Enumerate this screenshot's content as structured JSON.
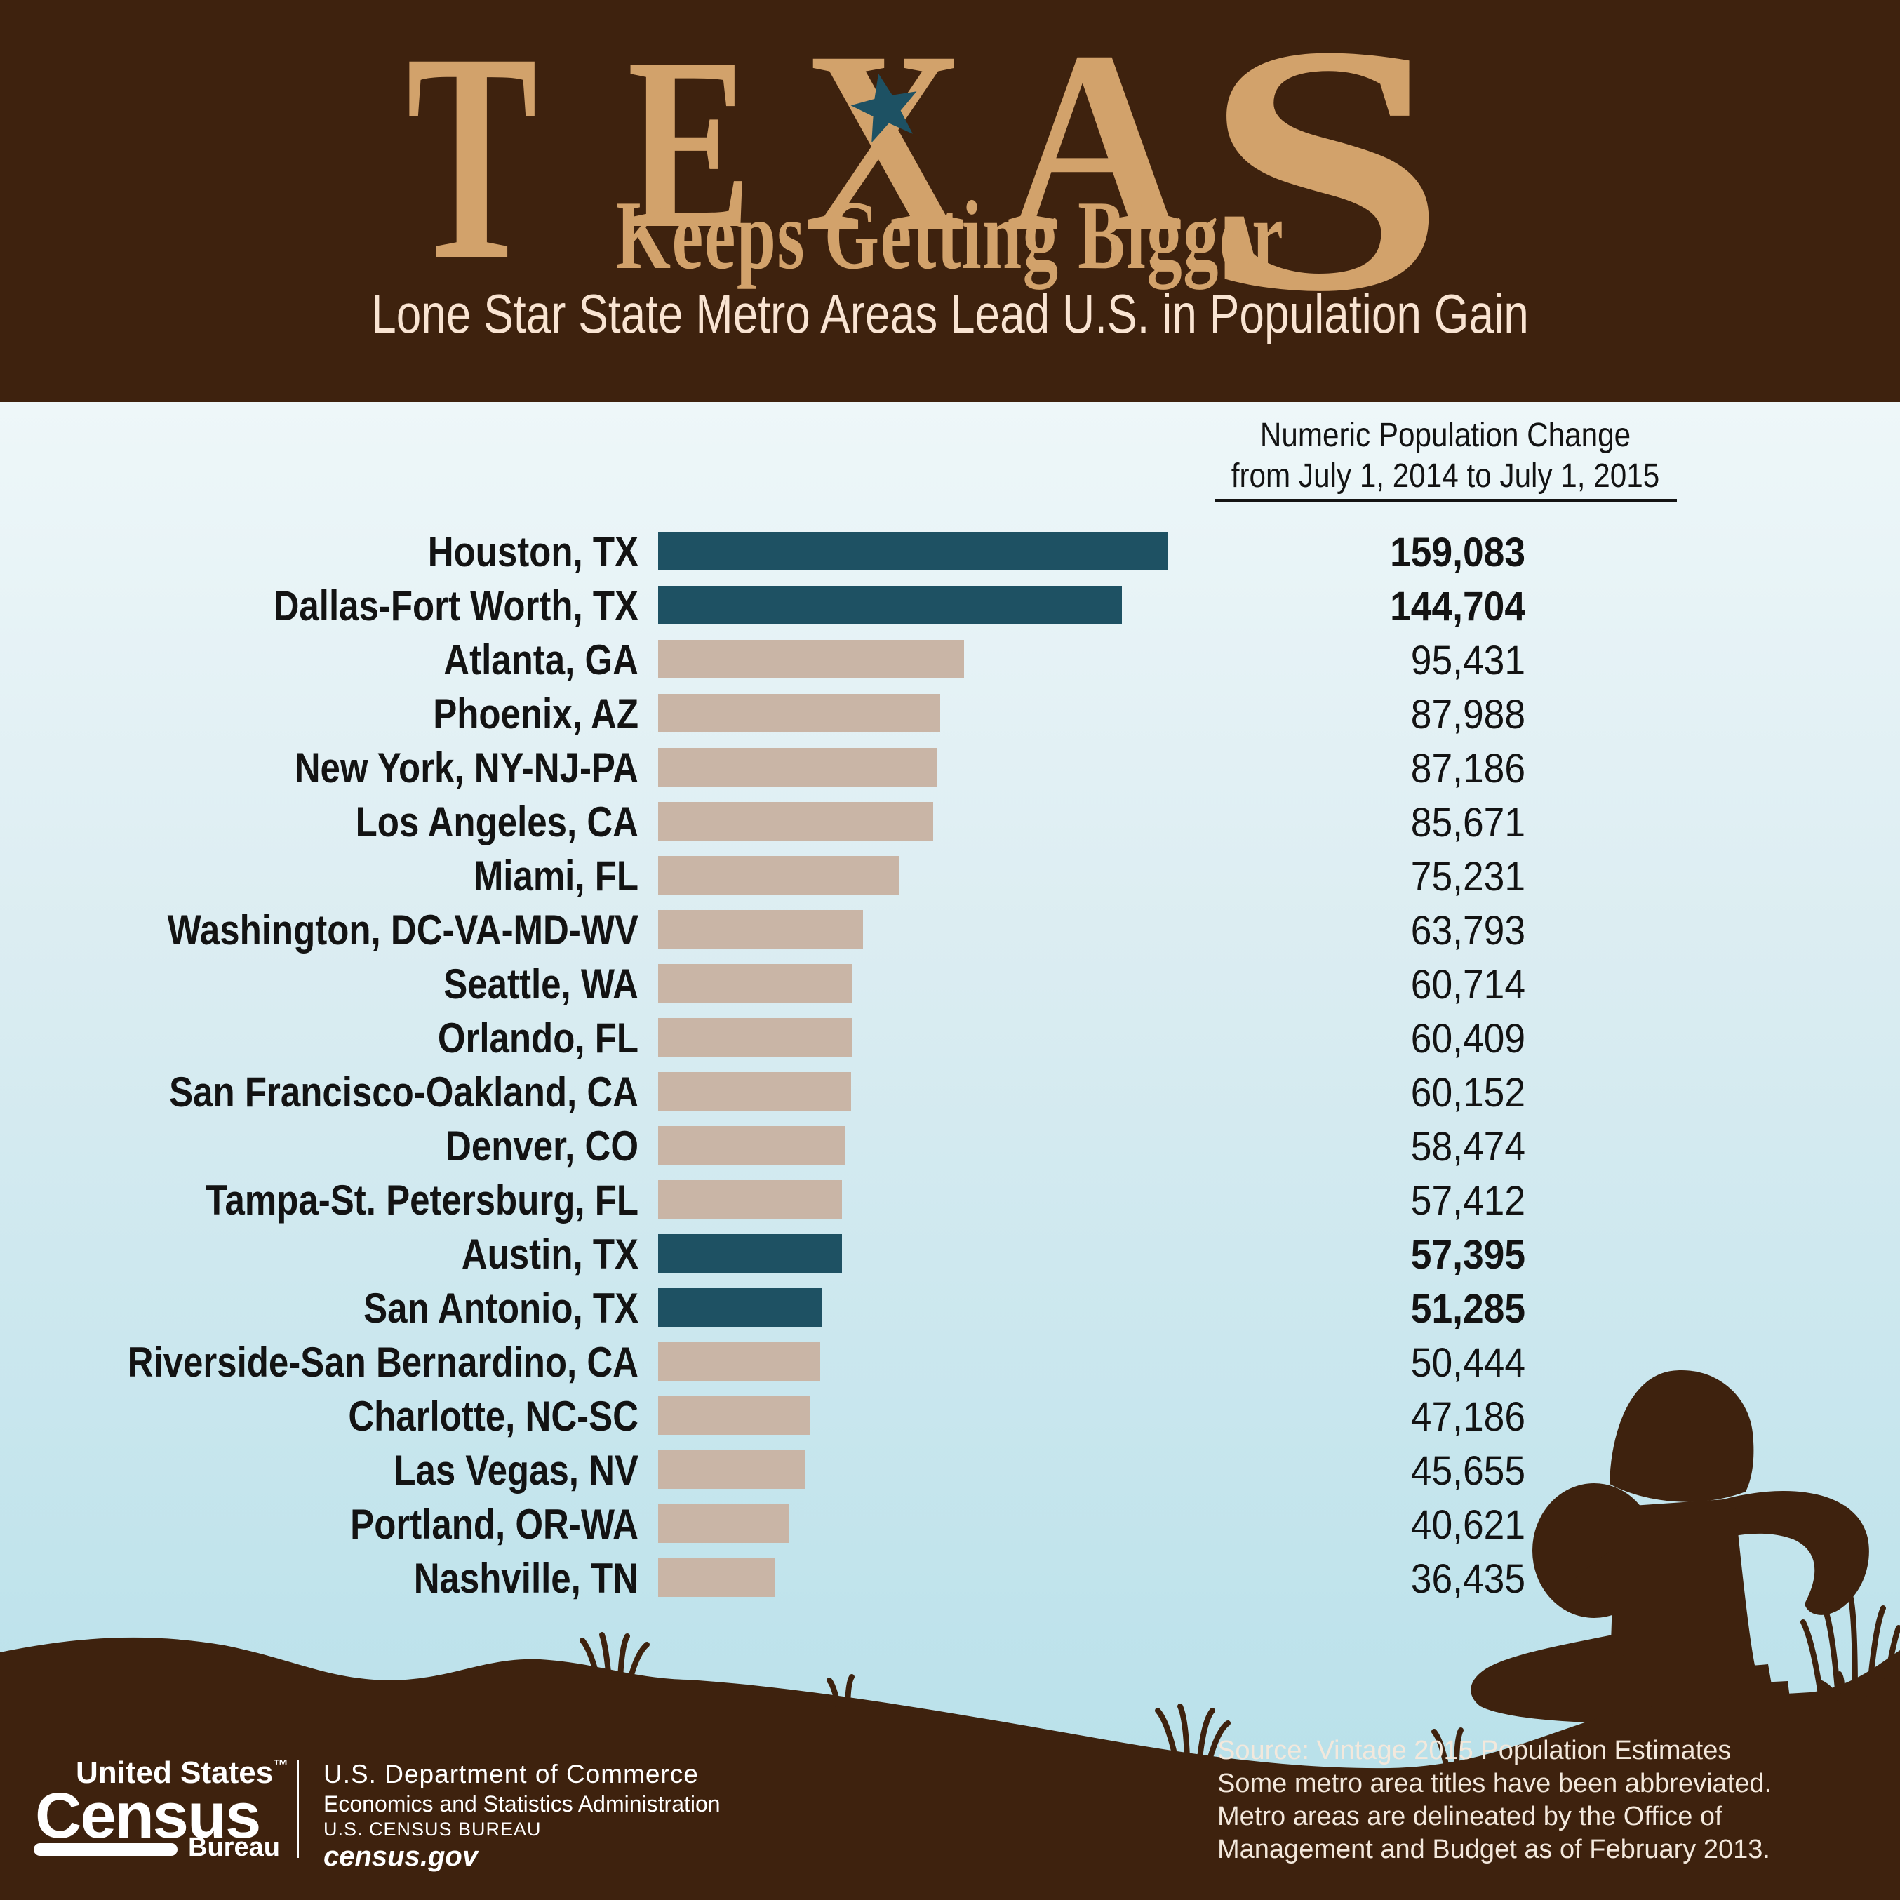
{
  "header": {
    "title_word": "TEXAS",
    "tagline": "Keeps Getting Bigger",
    "subtitle": "Lone Star State Metro Areas Lead U.S. in Population Gain"
  },
  "chart_data": {
    "type": "bar",
    "orientation": "horizontal",
    "title": "Numeric Population Change from July 1, 2014 to July 1, 2015",
    "column_header": [
      "Numeric Population Change",
      "from July 1, 2014 to July 1, 2015"
    ],
    "categories": [
      "Houston, TX",
      "Dallas-Fort Worth, TX",
      "Atlanta, GA",
      "Phoenix, AZ",
      "New York, NY-NJ-PA",
      "Los Angeles, CA",
      "Miami, FL",
      "Washington, DC-VA-MD-WV",
      "Seattle, WA",
      "Orlando, FL",
      "San Francisco-Oakland, CA",
      "Denver, CO",
      "Tampa-St. Petersburg, FL",
      "Austin, TX",
      "San Antonio, TX",
      "Riverside-San Bernardino, CA",
      "Charlotte, NC-SC",
      "Las Vegas, NV",
      "Portland, OR-WA",
      "Nashville, TN"
    ],
    "values": [
      159083,
      144704,
      95431,
      87988,
      87186,
      85671,
      75231,
      63793,
      60714,
      60409,
      60152,
      58474,
      57412,
      57395,
      51285,
      50444,
      47186,
      45655,
      40621,
      36435
    ],
    "value_labels": [
      "159,083",
      "144,704",
      "95,431",
      "87,988",
      "87,186",
      "85,671",
      "75,231",
      "63,793",
      "60,714",
      "60,409",
      "60,152",
      "58,474",
      "57,412",
      "57,395",
      "51,285",
      "50,444",
      "47,186",
      "45,655",
      "40,621",
      "36,435"
    ],
    "texas_highlight": [
      true,
      true,
      false,
      false,
      false,
      false,
      false,
      false,
      false,
      false,
      false,
      false,
      false,
      true,
      true,
      false,
      false,
      false,
      false,
      false
    ],
    "xlim": [
      0,
      159083
    ],
    "legend": "none",
    "colors": {
      "texas_bar": "#1e5163",
      "other_bar": "#c9b5a6",
      "star": "#1d5163",
      "value_text": "#131313"
    }
  },
  "footer": {
    "logo": {
      "top": "United States",
      "trademark": "™",
      "wordmark": "Census",
      "bureau": "Bureau"
    },
    "agency_lines": [
      "U.S. Department of Commerce",
      "Economics and Statistics Administration",
      "U.S. CENSUS BUREAU"
    ],
    "site": "census.gov",
    "source_lines": [
      "Source: Vintage 2015 Population Estimates",
      "Some metro area titles have been abbreviated.",
      "Metro areas are delineated by the Office of",
      "Management and Budget as of February 2013."
    ]
  }
}
